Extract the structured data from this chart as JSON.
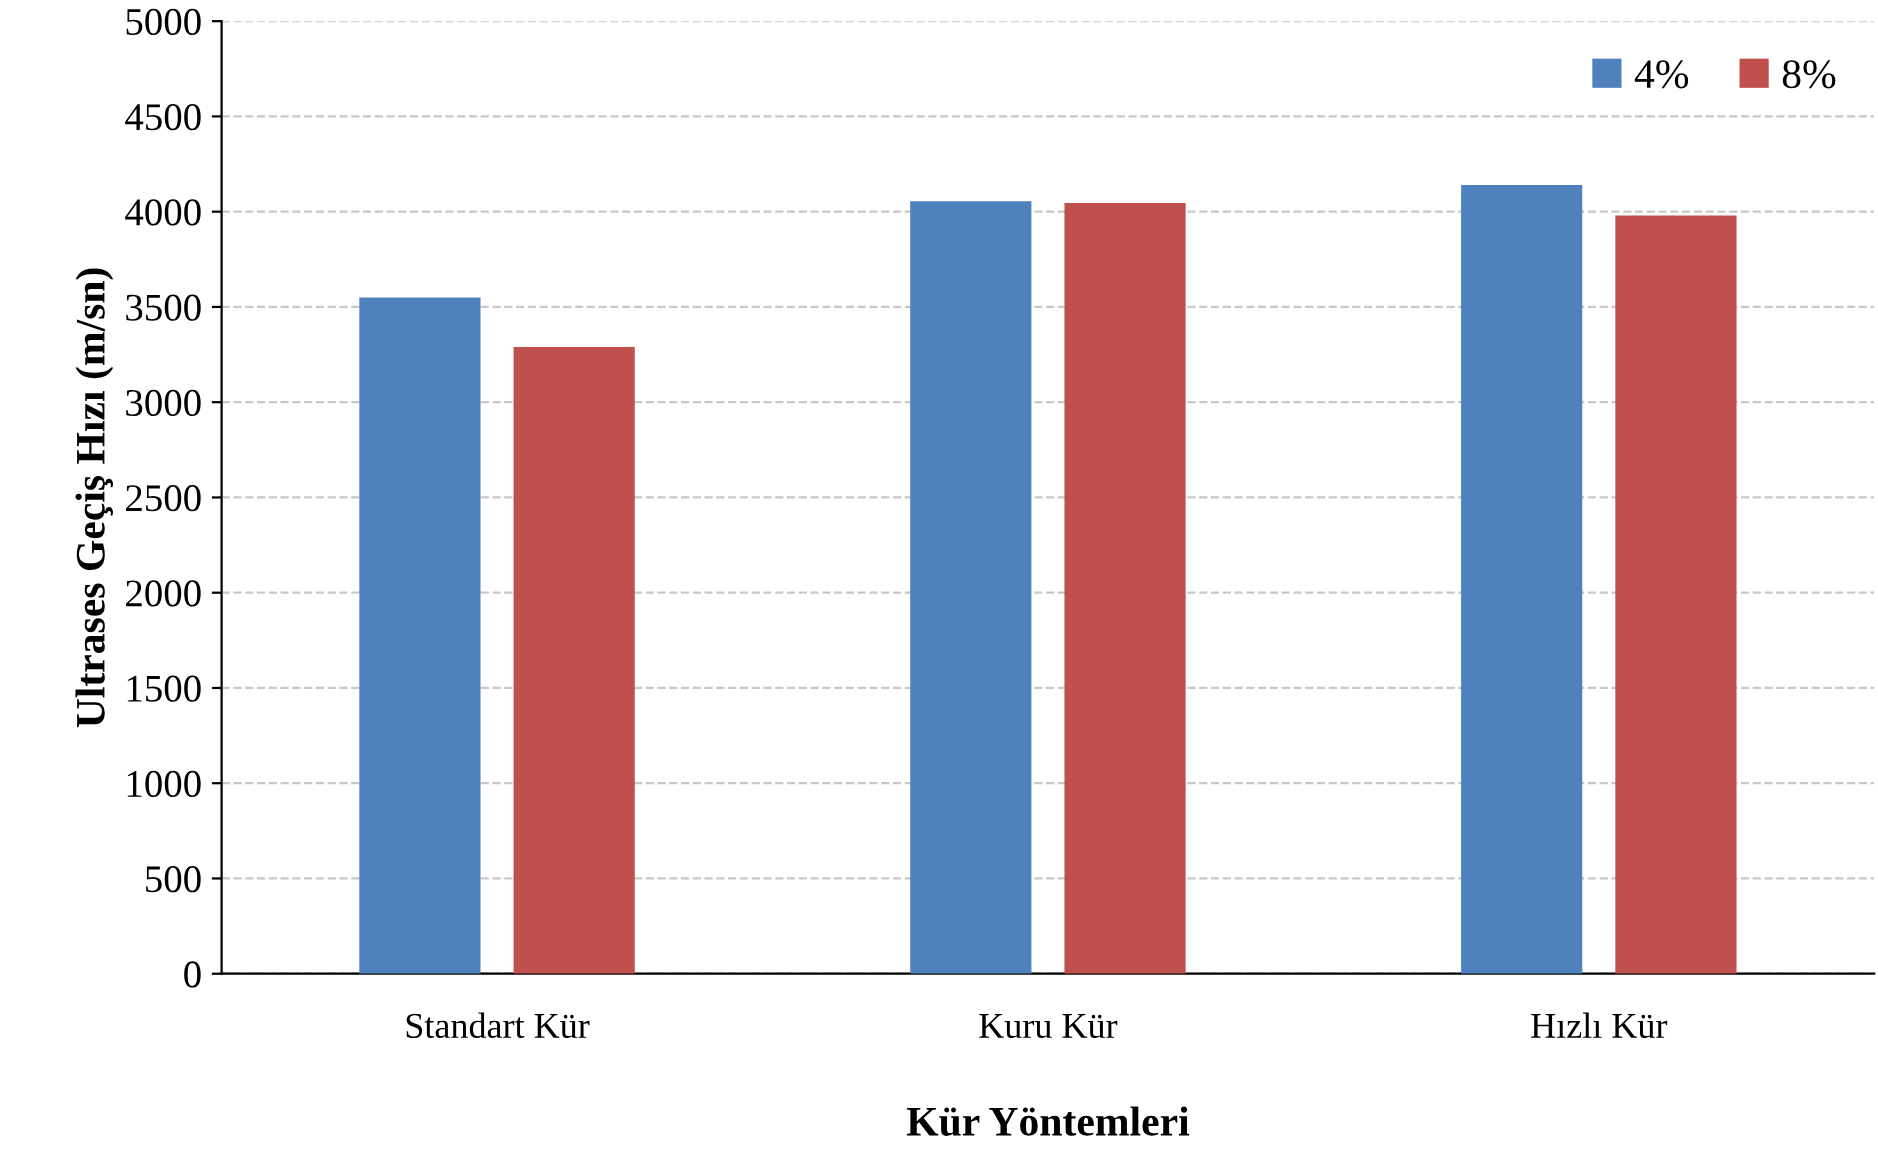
{
  "chart_data": {
    "type": "bar",
    "xlabel": "Kür Yöntemleri",
    "ylabel": "Ultrases Geçiş Hızı (m/sn)",
    "categories": [
      "Standart Kür",
      "Kuru Kür",
      "Hızlı Kür"
    ],
    "series": [
      {
        "name": "4%",
        "color": "#4f81bd",
        "values": [
          3550,
          4055,
          4140
        ]
      },
      {
        "name": "8%",
        "color": "#c0504d",
        "values": [
          3290,
          4045,
          3980
        ]
      }
    ],
    "ylim": [
      0,
      5000
    ],
    "yticks": [
      0,
      500,
      1000,
      1500,
      2000,
      2500,
      3000,
      3500,
      4000,
      4500,
      5000
    ],
    "grid": "y",
    "legend": "top right"
  }
}
